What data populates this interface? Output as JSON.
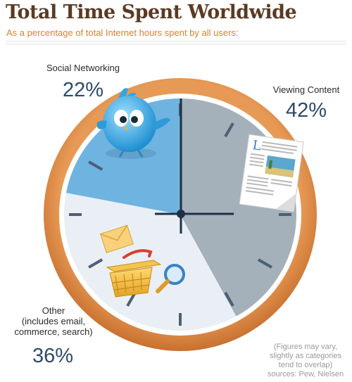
{
  "header": {
    "title": "Total Time Spent Worldwide",
    "subtitle": "As a percentage of total Internet hours spent by all users:"
  },
  "chart_data": {
    "type": "pie",
    "title": "Total Time Spent Worldwide",
    "subtitle": "As a percentage of total Internet hours spent by all users:",
    "unit": "%",
    "slices": [
      {
        "label": "Viewing Content",
        "value": 42,
        "display": "42%",
        "color": "#a4b0ba"
      },
      {
        "label": "Other (includes email, commerce, search)",
        "label_lines": [
          "Other",
          "(includes email,",
          "commerce, search)"
        ],
        "value": 36,
        "display": "36%",
        "color": "#e9eff4"
      },
      {
        "label": "Social Networking",
        "value": 22,
        "display": "22%",
        "color": "#6fb3e0"
      }
    ]
  },
  "clock": {
    "rim_color": "#de8c47",
    "hand_color": "#1f2f45"
  },
  "icons": {
    "social": "twitter-bird-icon",
    "content": "newspaper-page-icon",
    "other": [
      "envelope-icon",
      "shopping-basket-icon",
      "magnifier-icon"
    ]
  },
  "note": {
    "lines": [
      "(Figures may vary,",
      "slightly as categories",
      "tend to overlap)",
      "sources: Pew, Nielsen"
    ]
  }
}
